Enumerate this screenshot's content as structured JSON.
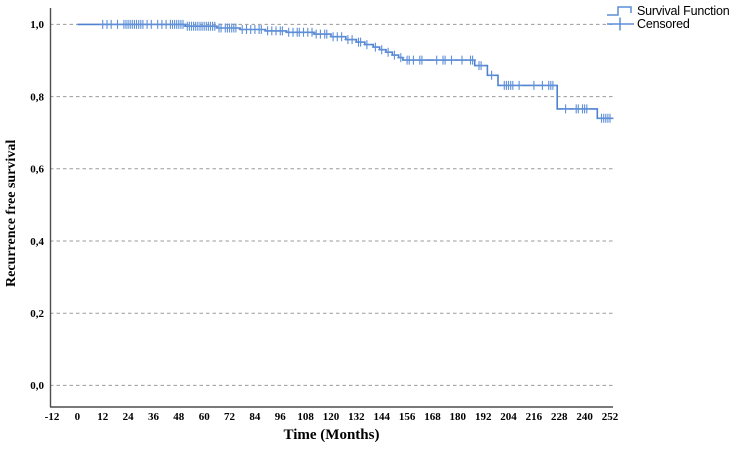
{
  "legend": {
    "survival_label": "Survival Function",
    "censored_label": "Censored"
  },
  "colors": {
    "curve": "#4e81d0",
    "censor": "#5e8fd8",
    "legend_icon": "#5b8ed8",
    "grid": "#9b9b9b",
    "axis": "#4d4d4d",
    "text": "#000000"
  },
  "chart_data": {
    "type": "line",
    "subtype": "kaplan-meier-step",
    "title": "",
    "xlabel": "Time (Months)",
    "ylabel": "Recurrence free survival",
    "grid": "horizontal-dashed",
    "legend_position": "top-right",
    "xlim": [
      -12,
      254
    ],
    "ylim": [
      0.0,
      1.0
    ],
    "x_ticks": [
      -12,
      0,
      12,
      24,
      36,
      48,
      60,
      72,
      84,
      96,
      108,
      120,
      132,
      144,
      156,
      168,
      180,
      192,
      204,
      216,
      228,
      240,
      252
    ],
    "y_ticks": [
      {
        "label": "0,0",
        "value": 0.0
      },
      {
        "label": "0,2",
        "value": 0.2
      },
      {
        "label": "0,4",
        "value": 0.4
      },
      {
        "label": "0,6",
        "value": 0.6
      },
      {
        "label": "0,8",
        "value": 0.8
      },
      {
        "label": "1,0",
        "value": 1.0
      }
    ],
    "curve_end_month": 253.5,
    "series": [
      {
        "name": "Survival Function",
        "type": "step",
        "color": "#4e81d0",
        "points": [
          [
            0,
            1.0
          ],
          [
            51,
            0.995
          ],
          [
            66,
            0.99
          ],
          [
            77,
            0.986
          ],
          [
            89,
            0.982
          ],
          [
            99,
            0.978
          ],
          [
            112,
            0.973
          ],
          [
            120,
            0.966
          ],
          [
            127,
            0.958
          ],
          [
            132,
            0.951
          ],
          [
            136,
            0.944
          ],
          [
            140,
            0.937
          ],
          [
            143,
            0.93
          ],
          [
            146,
            0.923
          ],
          [
            149,
            0.915
          ],
          [
            152,
            0.908
          ],
          [
            154,
            0.901
          ],
          [
            188,
            0.886
          ],
          [
            194,
            0.859
          ],
          [
            199,
            0.831
          ],
          [
            227,
            0.766
          ],
          [
            246,
            0.74
          ]
        ]
      },
      {
        "name": "Censored",
        "type": "censor-marks",
        "color": "#5e8fd8",
        "points": [
          [
            12,
            1
          ],
          [
            14,
            1
          ],
          [
            16,
            1
          ],
          [
            19,
            1
          ],
          [
            22,
            1
          ],
          [
            23,
            1
          ],
          [
            24,
            1
          ],
          [
            25,
            1
          ],
          [
            26,
            1
          ],
          [
            27,
            1
          ],
          [
            28,
            1
          ],
          [
            29,
            1
          ],
          [
            30,
            1
          ],
          [
            31,
            1
          ],
          [
            33,
            1
          ],
          [
            35,
            1
          ],
          [
            38,
            1
          ],
          [
            40,
            1
          ],
          [
            42,
            1
          ],
          [
            44,
            1
          ],
          [
            45,
            1
          ],
          [
            46,
            1
          ],
          [
            47,
            1
          ],
          [
            48,
            1
          ],
          [
            49,
            1
          ],
          [
            50,
            1
          ],
          [
            52,
            0.995
          ],
          [
            53,
            0.995
          ],
          [
            54,
            0.995
          ],
          [
            55,
            0.995
          ],
          [
            56,
            0.995
          ],
          [
            57,
            0.995
          ],
          [
            58,
            0.995
          ],
          [
            59,
            0.995
          ],
          [
            60,
            0.995
          ],
          [
            61,
            0.995
          ],
          [
            62,
            0.995
          ],
          [
            63,
            0.995
          ],
          [
            64,
            0.995
          ],
          [
            65,
            0.995
          ],
          [
            67,
            0.99
          ],
          [
            68,
            0.99
          ],
          [
            70,
            0.99
          ],
          [
            71,
            0.99
          ],
          [
            72,
            0.99
          ],
          [
            73,
            0.99
          ],
          [
            74,
            0.99
          ],
          [
            75,
            0.99
          ],
          [
            78,
            0.986
          ],
          [
            80,
            0.986
          ],
          [
            82,
            0.986
          ],
          [
            84,
            0.986
          ],
          [
            86,
            0.986
          ],
          [
            87,
            0.986
          ],
          [
            90,
            0.982
          ],
          [
            92,
            0.982
          ],
          [
            94,
            0.982
          ],
          [
            96,
            0.982
          ],
          [
            97,
            0.982
          ],
          [
            100,
            0.978
          ],
          [
            102,
            0.978
          ],
          [
            104,
            0.978
          ],
          [
            105,
            0.978
          ],
          [
            107,
            0.978
          ],
          [
            109,
            0.978
          ],
          [
            111,
            0.978
          ],
          [
            113,
            0.973
          ],
          [
            115,
            0.973
          ],
          [
            117,
            0.973
          ],
          [
            118,
            0.973
          ],
          [
            121,
            0.966
          ],
          [
            123,
            0.966
          ],
          [
            125,
            0.966
          ],
          [
            128,
            0.958
          ],
          [
            130,
            0.958
          ],
          [
            133,
            0.951
          ],
          [
            134,
            0.951
          ],
          [
            137,
            0.944
          ],
          [
            141,
            0.937
          ],
          [
            144,
            0.93
          ],
          [
            147,
            0.923
          ],
          [
            150,
            0.915
          ],
          [
            153,
            0.908
          ],
          [
            156,
            0.901
          ],
          [
            157,
            0.901
          ],
          [
            159,
            0.901
          ],
          [
            162,
            0.901
          ],
          [
            163,
            0.901
          ],
          [
            170,
            0.901
          ],
          [
            173,
            0.901
          ],
          [
            174,
            0.901
          ],
          [
            177,
            0.901
          ],
          [
            182,
            0.901
          ],
          [
            186,
            0.901
          ],
          [
            187,
            0.901
          ],
          [
            190,
            0.886
          ],
          [
            191,
            0.886
          ],
          [
            196,
            0.859
          ],
          [
            202,
            0.831
          ],
          [
            203,
            0.831
          ],
          [
            204,
            0.831
          ],
          [
            205,
            0.831
          ],
          [
            206,
            0.831
          ],
          [
            209,
            0.831
          ],
          [
            216,
            0.831
          ],
          [
            220,
            0.831
          ],
          [
            223,
            0.831
          ],
          [
            224,
            0.831
          ],
          [
            225,
            0.831
          ],
          [
            231,
            0.766
          ],
          [
            236,
            0.766
          ],
          [
            237,
            0.766
          ],
          [
            239,
            0.766
          ],
          [
            240,
            0.766
          ],
          [
            241,
            0.766
          ],
          [
            248,
            0.74
          ],
          [
            249,
            0.74
          ],
          [
            250,
            0.74
          ],
          [
            251,
            0.74
          ],
          [
            252,
            0.74
          ]
        ]
      }
    ]
  }
}
